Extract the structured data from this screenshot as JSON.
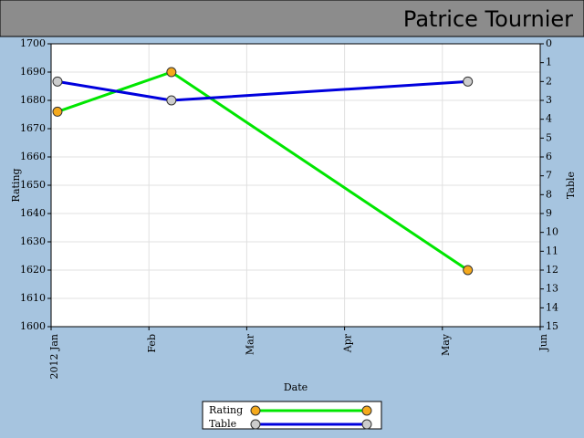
{
  "chart_data": {
    "type": "line",
    "title": "Patrice Tournier",
    "x_label": "Date",
    "y_label": "Rating",
    "y2_label": "Table",
    "x": [
      1.065,
      2.23,
      5.26
    ],
    "xlim": [
      1,
      6
    ],
    "xticks": [
      {
        "value": 1,
        "label": "2012 Jan"
      },
      {
        "value": 2,
        "label": "Feb"
      },
      {
        "value": 3,
        "label": "Mar"
      },
      {
        "value": 4,
        "label": "Apr"
      },
      {
        "value": 5,
        "label": "May"
      },
      {
        "value": 6,
        "label": "Jun"
      }
    ],
    "ylim": [
      1600,
      1700
    ],
    "yticks": [
      1600,
      1610,
      1620,
      1630,
      1640,
      1650,
      1660,
      1670,
      1680,
      1690,
      1700
    ],
    "y2lim": [
      15,
      0
    ],
    "y2ticks": [
      0,
      1,
      2,
      3,
      4,
      5,
      6,
      7,
      8,
      9,
      10,
      11,
      12,
      13,
      14,
      15
    ],
    "grid": true,
    "legend": "bottom",
    "series": [
      {
        "name": "Rating",
        "color": "#00e600",
        "marker_color": "#f5a91c",
        "values": [
          1676,
          1690,
          1620
        ]
      },
      {
        "name": "Table",
        "color": "#0000dd",
        "marker_color": "#cccccc",
        "axis": "y2",
        "values": [
          2,
          3,
          2
        ]
      }
    ]
  }
}
